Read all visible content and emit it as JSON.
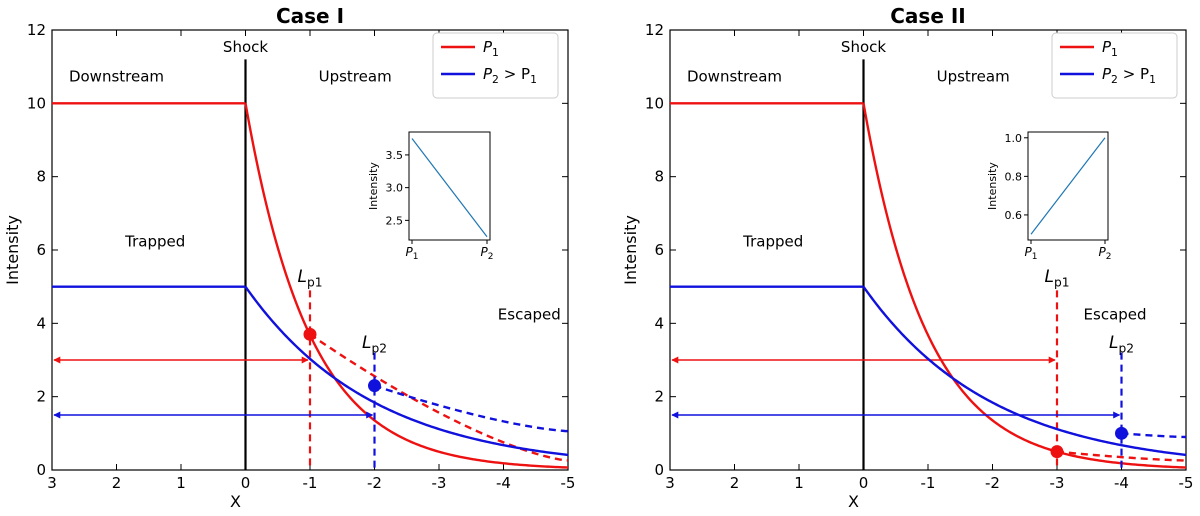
{
  "colors": {
    "p1": "#ee1111",
    "p2": "#1111dd",
    "shock": "#000000",
    "inset_line": "#1f77b4"
  },
  "chart_data": [
    {
      "type": "line",
      "title": "Case I",
      "xlabel": "X",
      "ylabel": "Intensity",
      "xlim": [
        3,
        -5
      ],
      "ylim": [
        0,
        12
      ],
      "xticks": [
        3,
        2,
        1,
        0,
        -1,
        -2,
        -3,
        -4,
        -5
      ],
      "xtick_labels": [
        "3",
        "2",
        "1",
        "0",
        "-1",
        "-2",
        "-3",
        "-4",
        "-5"
      ],
      "yticks": [
        0,
        2,
        4,
        6,
        8,
        10,
        12
      ],
      "ytick_labels": [
        "0",
        "2",
        "4",
        "6",
        "8",
        "10",
        "12"
      ],
      "grid": false,
      "legend_position": "top-right",
      "legend": [
        {
          "series": "P1",
          "text": "P",
          "sub": "1",
          "rest": ""
        },
        {
          "series": "P2",
          "text": "P",
          "sub": "2",
          "rest": " > P",
          "sub2": "1"
        }
      ],
      "shock_x": 0,
      "shock_label": "Shock",
      "region_labels": [
        {
          "text": "Downstream",
          "x": 2,
          "y": 10.6
        },
        {
          "text": "Upstream",
          "x": -1.7,
          "y": 10.6
        },
        {
          "text": "Trapped",
          "x": 1.4,
          "y": 6.1
        },
        {
          "text": "Escaped",
          "x": -4.4,
          "y": 4.1
        }
      ],
      "series": [
        {
          "name": "P1",
          "downstream_level": 10,
          "decay_length": 1,
          "length_scale_x": -1,
          "length_scale_label": "L",
          "length_scale_sub": "p1",
          "arrow_y": 3,
          "dot_y": 3.7,
          "dashed_tail": true,
          "tail_end_y": 0.26
        },
        {
          "name": "P2",
          "downstream_level": 5,
          "decay_length": 2,
          "length_scale_x": -2,
          "length_scale_label": "L",
          "length_scale_sub": "p2",
          "arrow_y": 1.5,
          "dot_y": 2.3,
          "dashed_tail": true,
          "tail_end_y": 1.06
        }
      ],
      "inset": {
        "type": "line",
        "ylabel": "Intensity",
        "categories": [
          "P1",
          "P2"
        ],
        "category_labels": [
          {
            "text": "P",
            "sub": "1"
          },
          {
            "text": "P",
            "sub": "2"
          }
        ],
        "values": [
          3.75,
          2.25
        ],
        "ylim": [
          2.2,
          3.85
        ],
        "yticks": [
          2.5,
          3.0,
          3.5
        ],
        "ytick_labels": [
          "2.5",
          "3.0",
          "3.5"
        ]
      }
    },
    {
      "type": "line",
      "title": "Case II",
      "xlabel": "X",
      "ylabel": "Intensity",
      "xlim": [
        3,
        -5
      ],
      "ylim": [
        0,
        12
      ],
      "xticks": [
        3,
        2,
        1,
        0,
        -1,
        -2,
        -3,
        -4,
        -5
      ],
      "xtick_labels": [
        "3",
        "2",
        "1",
        "0",
        "-1",
        "-2",
        "-3",
        "-4",
        "-5"
      ],
      "yticks": [
        0,
        2,
        4,
        6,
        8,
        10,
        12
      ],
      "ytick_labels": [
        "0",
        "2",
        "4",
        "6",
        "8",
        "10",
        "12"
      ],
      "grid": false,
      "legend_position": "top-right",
      "legend": [
        {
          "series": "P1",
          "text": "P",
          "sub": "1",
          "rest": ""
        },
        {
          "series": "P2",
          "text": "P",
          "sub": "2",
          "rest": " > P",
          "sub2": "1"
        }
      ],
      "shock_x": 0,
      "shock_label": "Shock",
      "region_labels": [
        {
          "text": "Downstream",
          "x": 2,
          "y": 10.6
        },
        {
          "text": "Upstream",
          "x": -1.7,
          "y": 10.6
        },
        {
          "text": "Trapped",
          "x": 1.4,
          "y": 6.1
        },
        {
          "text": "Escaped",
          "x": -3.9,
          "y": 4.1
        }
      ],
      "series": [
        {
          "name": "P1",
          "downstream_level": 10,
          "decay_length": 1,
          "length_scale_x": -3,
          "length_scale_label": "L",
          "length_scale_sub": "p1",
          "arrow_y": 3,
          "dot_y": 0.5,
          "dashed_tail": true,
          "tail_end_y": 0.26
        },
        {
          "name": "P2",
          "downstream_level": 5,
          "decay_length": 2,
          "length_scale_x": -4,
          "length_scale_label": "L",
          "length_scale_sub": "p2",
          "arrow_y": 1.5,
          "dot_y": 1.0,
          "dashed_tail": true,
          "tail_end_y": 0.9
        }
      ],
      "inset": {
        "type": "line",
        "ylabel": "Intensity",
        "categories": [
          "P1",
          "P2"
        ],
        "category_labels": [
          {
            "text": "P",
            "sub": "1"
          },
          {
            "text": "P",
            "sub": "2"
          }
        ],
        "values": [
          0.5,
          1.0
        ],
        "ylim": [
          0.47,
          1.03
        ],
        "yticks": [
          0.6,
          0.8,
          1.0
        ],
        "ytick_labels": [
          "0.6",
          "0.8",
          "1.0"
        ]
      }
    }
  ]
}
